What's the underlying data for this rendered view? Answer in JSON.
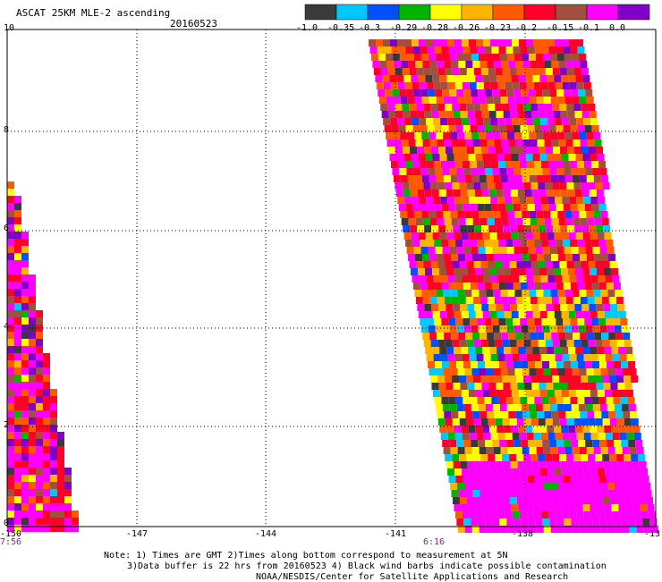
{
  "header": {
    "title": "ASCAT 25KM MLE-2 ascending",
    "date": "20160523"
  },
  "colorbar": {
    "labels": [
      "-1.0",
      "-0.35",
      "-0.3",
      "-0.29",
      "-0.28",
      "-0.26",
      "-0.23",
      "-0.2",
      "-0.15",
      "-0.1",
      "0.0"
    ],
    "colors": [
      "#3a3a3a",
      "#00c8ff",
      "#0050ff",
      "#00b400",
      "#ffff00",
      "#ffb400",
      "#ff5a00",
      "#ff0028",
      "#a0503c",
      "#ff00ff",
      "#8000c8"
    ]
  },
  "axes": {
    "x_ticks": [
      "-150",
      "-147",
      "-144",
      "-141",
      "-138",
      "-13"
    ],
    "y_ticks": [
      "10",
      "8",
      "6",
      "4",
      "2",
      "0"
    ],
    "xlim": [
      -150,
      -135
    ],
    "ylim": [
      0,
      10
    ]
  },
  "times": {
    "left": "7:56",
    "right": "6:16"
  },
  "notes": {
    "line1": "Note: 1) Times are GMT 2)Times along bottom correspond to measurement at 5N",
    "line2": "3)Data buffer is 22 hrs from 20160523 4) Black wind barbs indicate possible contamination",
    "line3": "NOAA/NESDIS/Center for Satellite Applications and Research"
  }
}
